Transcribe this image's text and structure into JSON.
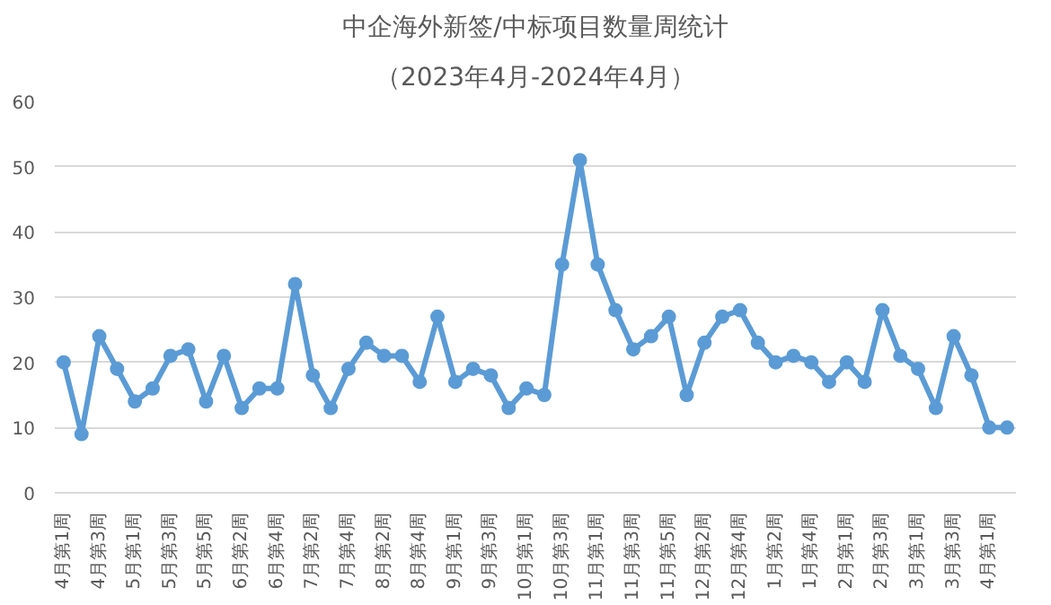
{
  "chart_data": {
    "type": "line",
    "title": "中企海外新签/中标项目数量周统计",
    "subtitle": "（2023年4月-2024年4月）",
    "categories": [
      "4月第1周",
      null,
      "4月第3周",
      null,
      "5月第1周",
      null,
      "5月第3周",
      null,
      "5月第5周",
      null,
      "6月第2周",
      null,
      "6月第4周",
      null,
      "7月第2周",
      null,
      "7月第4周",
      null,
      "8月第2周",
      null,
      "8月第4周",
      null,
      "9月第1周",
      null,
      "9月第3周",
      null,
      "10月第1周",
      null,
      "10月第3周",
      null,
      "11月第1周",
      null,
      "11月第3周",
      null,
      "11月第5周",
      null,
      "12月第2周",
      null,
      "12月第4周",
      null,
      "1月第2周",
      null,
      "1月第4周",
      null,
      "2月第1周",
      null,
      "2月第3周",
      null,
      "3月第1周",
      null,
      "3月第3周",
      null,
      "4月第1周",
      null
    ],
    "series": [
      {
        "color": "#5b9bd5",
        "values": [
          20,
          9,
          24,
          19,
          14,
          16,
          21,
          22,
          14,
          21,
          13,
          16,
          16,
          32,
          18,
          13,
          19,
          23,
          21,
          21,
          17,
          27,
          17,
          19,
          18,
          13,
          16,
          15,
          35,
          51,
          35,
          28,
          22,
          24,
          27,
          15,
          23,
          27,
          28,
          23,
          20,
          21,
          20,
          17,
          20,
          17,
          28,
          21,
          19,
          13,
          24,
          18,
          10,
          10
        ]
      }
    ],
    "ylim": [
      0,
      60
    ],
    "yticks": [
      0,
      10,
      20,
      30,
      40,
      50,
      60
    ],
    "grid": "y",
    "marker": "circle",
    "line_style": "solid"
  }
}
